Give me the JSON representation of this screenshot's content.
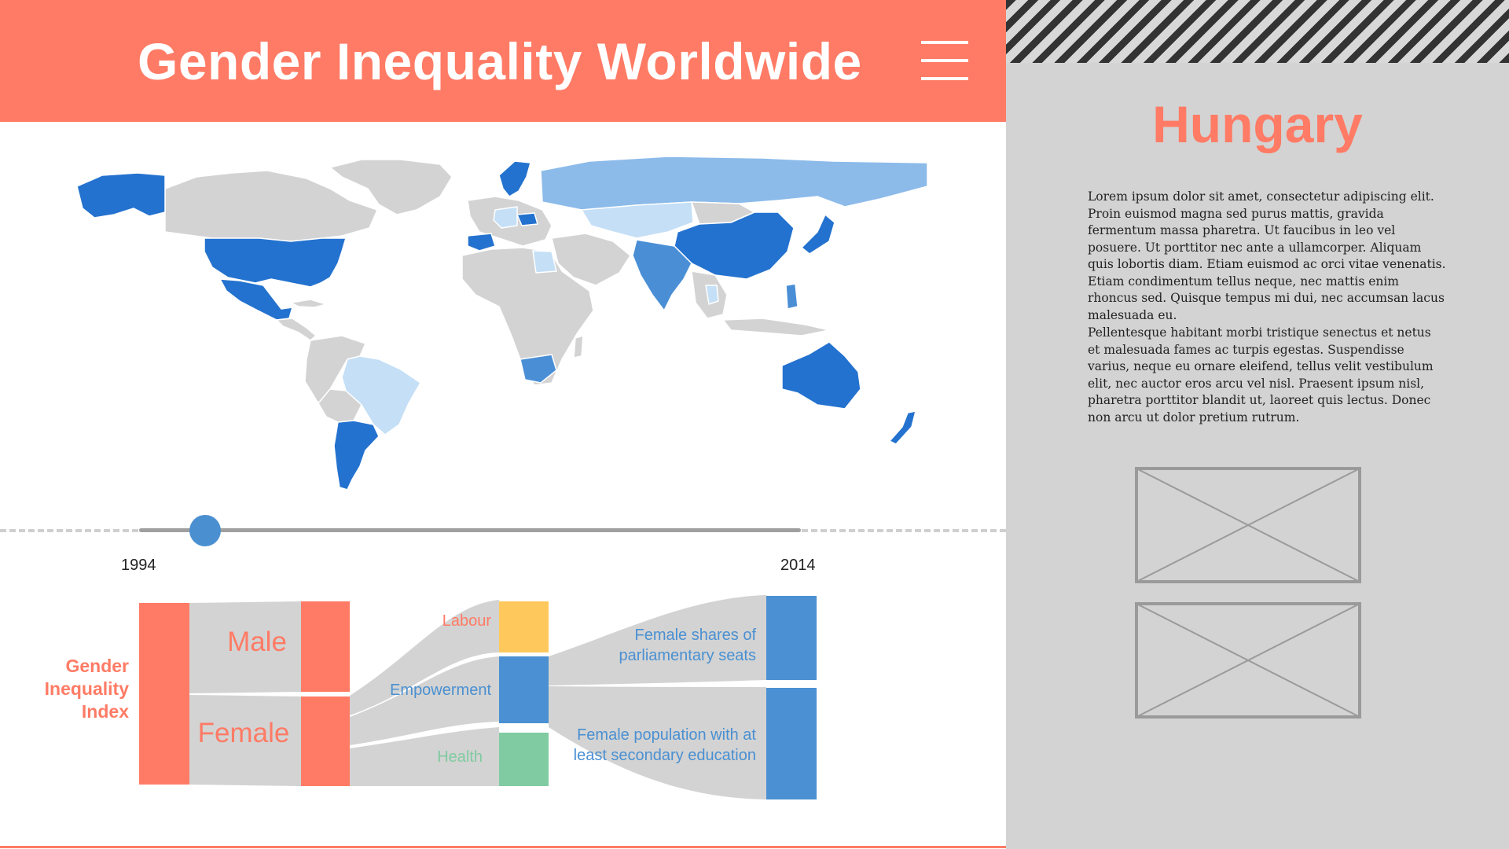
{
  "header": {
    "title": "Gender Inequality Worldwide"
  },
  "icons": {
    "menu": "hamburger-menu-icon"
  },
  "colors": {
    "accent": "#ff7b65",
    "map_dark": "#2472cf",
    "map_mid": "#4a8fd6",
    "map_light": "#8cbbea",
    "map_pale": "#c4dff6",
    "map_none": "#d3d3d3",
    "labour": "#ffc85c",
    "empowerment": "#4a90d2",
    "health": "#80cba1"
  },
  "timeline": {
    "start_year": "1994",
    "end_year": "2014",
    "position": 0.1
  },
  "sankey": {
    "index_label": [
      "Gender",
      "Inequality",
      "Index"
    ],
    "male_label": "Male",
    "female_label": "Female",
    "labour_label": "Labour",
    "empowerment_label": "Empowerment",
    "health_label": "Health",
    "parliament_label": [
      "Female shares of",
      "parliamentary seats"
    ],
    "education_label": [
      "Female population with at",
      "least secondary education"
    ]
  },
  "sidebar": {
    "country": "Hungary",
    "paragraph1": "Lorem ipsum dolor sit amet, consectetur adipiscing elit. Proin euismod magna sed purus mattis, gravida fermentum massa pharetra. Ut faucibus in leo vel posuere. Ut porttitor nec ante a ullamcorper. Aliquam quis lobortis diam. Etiam euismod ac orci vitae venenatis. Etiam condimentum tellus neque, nec mattis enim rhoncus sed. Quisque tempus mi dui, nec accumsan lacus malesuada eu.",
    "paragraph2": "Pellentesque habitant morbi tristique senectus et netus et malesuada fames ac turpis egestas. Suspendisse varius, neque eu ornare eleifend, tellus velit vestibulum elit, nec auctor eros arcu vel nisl. Praesent ipsum nisl, pharetra porttitor blandit ut, laoreet quis lectus. Donec non arcu ut dolor pretium rutrum."
  }
}
